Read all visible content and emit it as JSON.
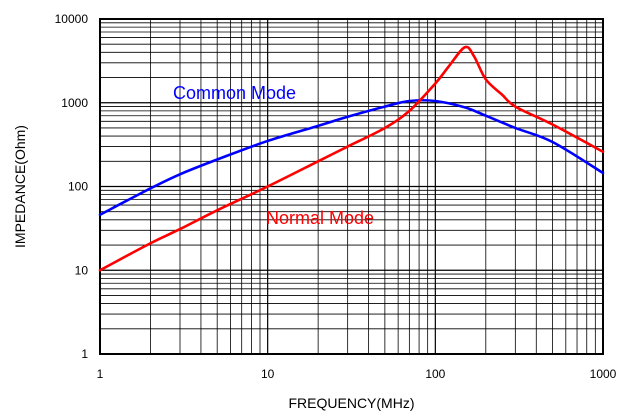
{
  "chart_data": {
    "type": "line",
    "title": "",
    "xlabel": "FREQUENCY(MHz)",
    "ylabel": "IMPEDANCE(Ohm)",
    "xscale": "log",
    "yscale": "log",
    "xlim": [
      1,
      1000
    ],
    "ylim": [
      1,
      10000
    ],
    "grid": true,
    "x_tick_labels": [
      "1",
      "10",
      "100",
      "1000"
    ],
    "y_tick_labels": [
      "1",
      "10",
      "100",
      "1000",
      "10000"
    ],
    "series": [
      {
        "name": "Common Mode",
        "color": "#0000ff",
        "x": [
          1,
          2,
          3,
          5,
          10,
          20,
          30,
          50,
          70,
          100,
          150,
          200,
          300,
          500,
          1000
        ],
        "y": [
          46,
          95,
          140,
          210,
          350,
          530,
          680,
          900,
          1050,
          1050,
          880,
          700,
          500,
          340,
          145
        ]
      },
      {
        "name": "Normal Mode",
        "color": "#ff0000",
        "x": [
          1,
          2,
          3,
          5,
          10,
          20,
          30,
          50,
          70,
          100,
          120,
          150,
          170,
          200,
          250,
          300,
          500,
          1000
        ],
        "y": [
          10,
          21,
          31,
          52,
          100,
          200,
          300,
          500,
          800,
          1700,
          2700,
          4600,
          3600,
          1900,
          1250,
          900,
          550,
          260
        ]
      }
    ]
  }
}
